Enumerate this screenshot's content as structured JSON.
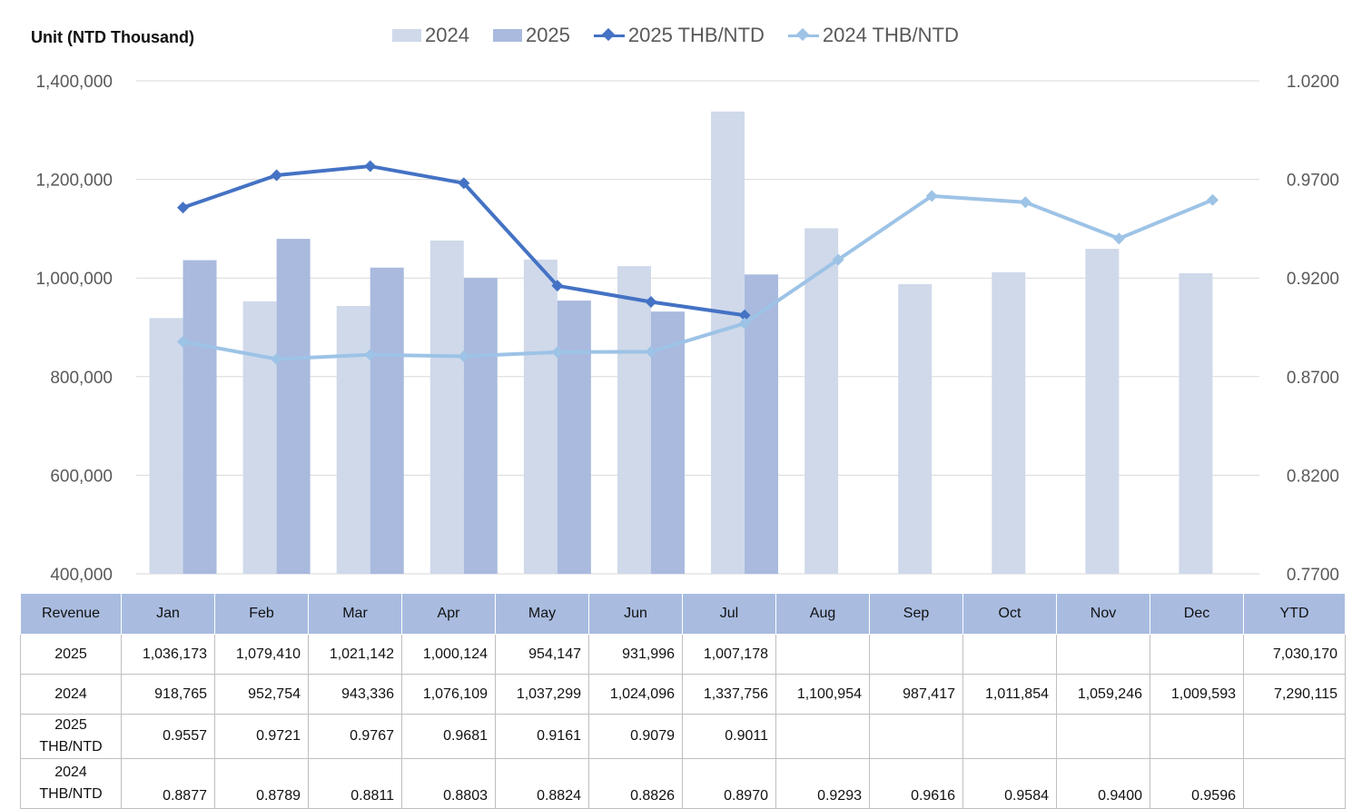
{
  "unit_label": "Unit (NTD  Thousand)",
  "legend": [
    {
      "label": "2024",
      "kind": "bar",
      "color": "#cfd9ea"
    },
    {
      "label": "2025",
      "kind": "bar",
      "color": "#a9bade"
    },
    {
      "label": "2025 THB/NTD",
      "kind": "line",
      "color": "#4472c4"
    },
    {
      "label": "2024 THB/NTD",
      "kind": "line",
      "color": "#9dc3e6"
    }
  ],
  "chart_data": {
    "type": "bar",
    "categories": [
      "Jan",
      "Feb",
      "Mar",
      "Apr",
      "May",
      "Jun",
      "Jul",
      "Aug",
      "Sep",
      "Oct",
      "Nov",
      "Dec"
    ],
    "series": [
      {
        "name": "2024",
        "type": "bar",
        "axis": "left",
        "color": "#cfd9ea",
        "values": [
          918765,
          952754,
          943336,
          1076109,
          1037299,
          1024096,
          1337756,
          1100954,
          987417,
          1011854,
          1059246,
          1009593
        ]
      },
      {
        "name": "2025",
        "type": "bar",
        "axis": "left",
        "color": "#a9bade",
        "values": [
          1036173,
          1079410,
          1021142,
          1000124,
          954147,
          931996,
          1007178,
          null,
          null,
          null,
          null,
          null
        ]
      },
      {
        "name": "2025 THB/NTD",
        "type": "line",
        "axis": "right",
        "color": "#4472c4",
        "values": [
          0.9557,
          0.9721,
          0.9767,
          0.9681,
          0.9161,
          0.9079,
          0.9011,
          null,
          null,
          null,
          null,
          null
        ]
      },
      {
        "name": "2024 THB/NTD",
        "type": "line",
        "axis": "right",
        "color": "#9dc3e6",
        "values": [
          0.8877,
          0.8789,
          0.8811,
          0.8803,
          0.8824,
          0.8826,
          0.897,
          0.9293,
          0.9616,
          0.9584,
          0.94,
          0.9596
        ]
      }
    ],
    "ylim": [
      400000,
      1400000
    ],
    "y_ticks": [
      "400,000",
      "600,000",
      "800,000",
      "1,000,000",
      "1,200,000",
      "1,400,000"
    ],
    "y2lim": [
      0.77,
      1.02
    ],
    "y2_ticks": [
      "0.7700",
      "0.8200",
      "0.8700",
      "0.9200",
      "0.9700",
      "1.0200"
    ],
    "grid": true,
    "legend_position": "top"
  },
  "table": {
    "headers": [
      "Revenue",
      "Jan",
      "Feb",
      "Mar",
      "Apr",
      "May",
      "Jun",
      "Jul",
      "Aug",
      "Sep",
      "Oct",
      "Nov",
      "Dec",
      "YTD"
    ],
    "rows": [
      [
        "2025",
        "1,036,173",
        "1,079,410",
        "1,021,142",
        "1,000,124",
        "954,147",
        "931,996",
        "1,007,178",
        "",
        "",
        "",
        "",
        "",
        "7,030,170"
      ],
      [
        "2024",
        "918,765",
        "952,754",
        "943,336",
        "1,076,109",
        "1,037,299",
        "1,024,096",
        "1,337,756",
        "1,100,954",
        "987,417",
        "1,011,854",
        "1,059,246",
        "1,009,593",
        "7,290,115"
      ],
      [
        "2025\nTHB/NTD",
        "0.9557",
        "0.9721",
        "0.9767",
        "0.9681",
        "0.9161",
        "0.9079",
        "0.9011",
        "",
        "",
        "",
        "",
        "",
        ""
      ],
      [
        "2024\nTHB/NTD",
        "0.8877",
        "0.8789",
        "0.8811",
        "0.8803",
        "0.8824",
        "0.8826",
        "0.8970",
        "0.9293",
        "0.9616",
        "0.9584",
        "0.9400",
        "0.9596",
        ""
      ]
    ]
  }
}
